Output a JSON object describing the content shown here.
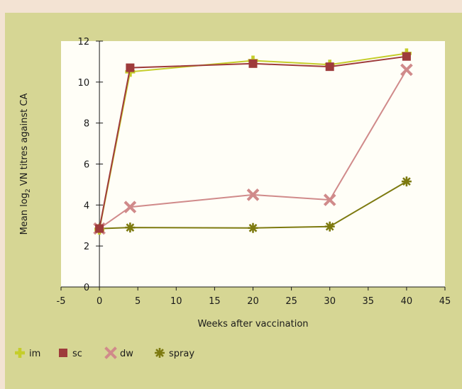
{
  "chart_data": {
    "type": "line",
    "title": "",
    "xlabel": "Weeks after vaccination",
    "ylabel": {
      "prefix": "Mean log",
      "subscript": "2",
      "suffix": " VN titres against CA"
    },
    "xlim": [
      -5,
      45
    ],
    "ylim": [
      0,
      12
    ],
    "xticks": [
      -5,
      0,
      5,
      10,
      15,
      20,
      25,
      30,
      35,
      40,
      45
    ],
    "yticks": [
      0,
      2,
      4,
      6,
      8,
      10,
      12
    ],
    "grid": false,
    "legend_position": "bottom-left",
    "series": [
      {
        "name": "im",
        "marker": "plus",
        "color": "#c5cd2a",
        "x": [
          0,
          4,
          20,
          30,
          40
        ],
        "y": [
          2.8,
          10.5,
          11.05,
          10.85,
          11.4
        ]
      },
      {
        "name": "sc",
        "marker": "square",
        "color": "#9e3b3b",
        "x": [
          0,
          4,
          20,
          30,
          40
        ],
        "y": [
          2.85,
          10.7,
          10.9,
          10.75,
          11.25
        ]
      },
      {
        "name": "dw",
        "marker": "x",
        "color": "#d08a8a",
        "x": [
          0,
          4,
          20,
          30,
          40
        ],
        "y": [
          2.85,
          3.9,
          4.5,
          4.25,
          10.6
        ]
      },
      {
        "name": "spray",
        "marker": "asterisk",
        "color": "#7d7a10",
        "x": [
          0,
          4,
          20,
          30,
          40
        ],
        "y": [
          2.85,
          2.9,
          2.88,
          2.95,
          5.15
        ]
      }
    ]
  }
}
